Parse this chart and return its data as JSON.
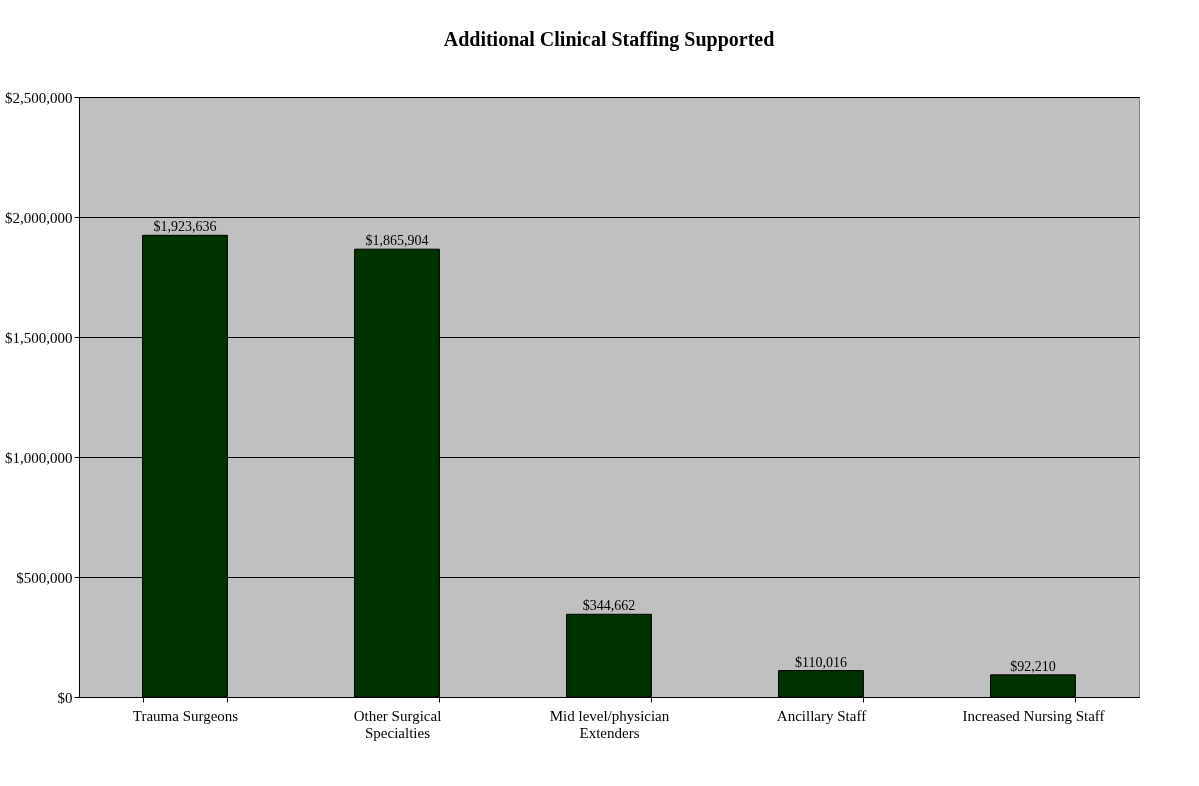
{
  "chart_data": {
    "type": "bar",
    "title": "Additional Clinical Staffing Supported",
    "categories": [
      "Trauma Surgeons",
      "Other Surgical Specialties",
      "Mid level/physician Extenders",
      "Ancillary Staff",
      "Increased Nursing Staff"
    ],
    "values": [
      1923636,
      1865904,
      344662,
      110016,
      92210
    ],
    "value_labels": [
      "$1,923,636",
      "$1,865,904",
      "$344,662",
      "$110,016",
      "$92,210"
    ],
    "color": "#003300",
    "ylim": [
      0,
      2500000
    ],
    "yticks": [
      {
        "value": 0,
        "label": "$0"
      },
      {
        "value": 500000,
        "label": "$500,000"
      },
      {
        "value": 1000000,
        "label": "$1,000,000"
      },
      {
        "value": 1500000,
        "label": "$1,500,000"
      },
      {
        "value": 2000000,
        "label": "$2,000,000"
      },
      {
        "value": 2500000,
        "label": "$2,500,000"
      }
    ],
    "grid": "y"
  }
}
